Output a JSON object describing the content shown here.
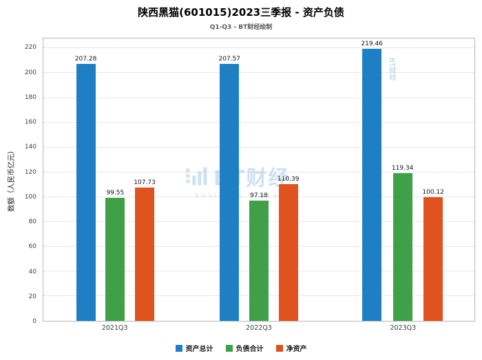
{
  "title": "陕西黑猫(601015)2023三季报 - 资产负债",
  "subtitle": "Q1-Q3 - BT财经绘制",
  "watermark": {
    "main": "BT财经",
    "sub": "BUSINESS TIMES",
    "side": "BT财经"
  },
  "chart_data": {
    "type": "bar",
    "title": "陕西黑猫(601015)2023三季报 - 资产负债",
    "subtitle": "Q1-Q3 - BT财经绘制",
    "ylabel": "数额（人民币亿元）",
    "xlabel": "",
    "categories": [
      "2021Q3",
      "2022Q3",
      "2023Q3"
    ],
    "series": [
      {
        "name": "资产总计",
        "color": "#1f7fc5",
        "values": [
          207.28,
          207.57,
          219.46
        ]
      },
      {
        "name": "负债合计",
        "color": "#3fa047",
        "values": [
          99.55,
          97.18,
          119.34
        ]
      },
      {
        "name": "净资产",
        "color": "#e0531e",
        "values": [
          107.73,
          110.39,
          100.12
        ]
      }
    ],
    "ylim": [
      0,
      228
    ],
    "yticks": [
      0,
      20,
      40,
      60,
      80,
      100,
      120,
      140,
      160,
      180,
      200,
      220
    ],
    "grid": true,
    "legend_position": "bottom"
  }
}
